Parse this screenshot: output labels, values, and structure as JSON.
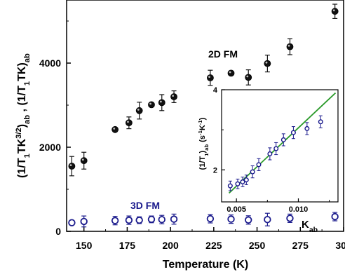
{
  "chart_data": [
    {
      "type": "scatter",
      "title": "",
      "xlabel": "Temperature (K)",
      "ylabel_html": [
        "(1/T",
        "1",
        "TK",
        "3/2",
        ")",
        "ab",
        " , (1/T",
        "1",
        "TK)",
        "ab"
      ],
      "xlim": [
        140,
        300
      ],
      "ylim": [
        0,
        5500
      ],
      "x_ticks": [
        150,
        175,
        200,
        225,
        250,
        275,
        300
      ],
      "x_tick_labels": [
        "150",
        "175",
        "200",
        "225",
        "250",
        "275",
        "300"
      ],
      "y_ticks": [
        0,
        2000,
        4000
      ],
      "y_tick_labels": [
        "0",
        "2000",
        "4000"
      ],
      "grid": false,
      "annotations": [
        {
          "text": "2D FM",
          "color": "#000000"
        },
        {
          "text": "3D FM",
          "color": "#1a1a8c"
        }
      ],
      "series": [
        {
          "marker": "filled-circle",
          "color": "#111111",
          "points": [
            {
              "x": 143,
              "y": 1550,
              "err": 230
            },
            {
              "x": 150,
              "y": 1680,
              "err": 200
            },
            {
              "x": 168,
              "y": 2420,
              "err": 0
            },
            {
              "x": 176,
              "y": 2580,
              "err": 140
            },
            {
              "x": 182,
              "y": 2870,
              "err": 200
            },
            {
              "x": 189,
              "y": 3010,
              "err": 0
            },
            {
              "x": 195,
              "y": 3060,
              "err": 190
            },
            {
              "x": 202,
              "y": 3200,
              "err": 140
            },
            {
              "x": 223,
              "y": 3650,
              "err": 180
            },
            {
              "x": 235,
              "y": 3760,
              "err": 0
            },
            {
              "x": 245,
              "y": 3660,
              "err": 180
            },
            {
              "x": 256,
              "y": 3990,
              "err": 200
            },
            {
              "x": 269,
              "y": 4390,
              "err": 190
            },
            {
              "x": 295,
              "y": 5230,
              "err": 170
            }
          ]
        },
        {
          "marker": "open-circle",
          "color": "#1a1a8c",
          "points": [
            {
              "x": 143,
              "y": 205,
              "err": 0
            },
            {
              "x": 150,
              "y": 235,
              "err": 130
            },
            {
              "x": 168,
              "y": 255,
              "err": 100
            },
            {
              "x": 176,
              "y": 265,
              "err": 100
            },
            {
              "x": 182,
              "y": 265,
              "err": 80
            },
            {
              "x": 189,
              "y": 285,
              "err": 80
            },
            {
              "x": 195,
              "y": 280,
              "err": 100
            },
            {
              "x": 202,
              "y": 290,
              "err": 120
            },
            {
              "x": 223,
              "y": 300,
              "err": 100
            },
            {
              "x": 235,
              "y": 290,
              "err": 100
            },
            {
              "x": 245,
              "y": 270,
              "err": 100
            },
            {
              "x": 256,
              "y": 280,
              "err": 150
            },
            {
              "x": 269,
              "y": 310,
              "err": 100
            },
            {
              "x": 295,
              "y": 350,
              "err": 100
            }
          ]
        }
      ]
    },
    {
      "type": "scatter",
      "title": "",
      "xlabel": "K",
      "xlabel_sub": "ab",
      "ylabel_parts": [
        "(1/T",
        "1",
        ")",
        "ab",
        " (s",
        "-1",
        "K",
        "-1",
        ")"
      ],
      "xlim": [
        0.0038,
        0.0132
      ],
      "ylim": [
        1.2,
        4
      ],
      "x_ticks": [
        0.005,
        0.01
      ],
      "x_tick_labels": [
        "0.005",
        "0.010"
      ],
      "y_ticks": [
        2,
        4
      ],
      "y_tick_labels": [
        "2",
        "4"
      ],
      "grid": false,
      "series": [
        {
          "marker": "open-circle",
          "color": "#1a1a8c",
          "points": [
            {
              "x": 0.0045,
              "y": 1.6,
              "err": 0.12
            },
            {
              "x": 0.0051,
              "y": 1.65,
              "err": 0.12
            },
            {
              "x": 0.0055,
              "y": 1.7,
              "err": 0.12
            },
            {
              "x": 0.0058,
              "y": 1.75,
              "err": 0.12
            },
            {
              "x": 0.0063,
              "y": 1.95,
              "err": 0.15
            },
            {
              "x": 0.0068,
              "y": 2.13,
              "err": 0.15
            },
            {
              "x": 0.0077,
              "y": 2.4,
              "err": 0.15
            },
            {
              "x": 0.0082,
              "y": 2.53,
              "err": 0.15
            },
            {
              "x": 0.0088,
              "y": 2.75,
              "err": 0.15
            },
            {
              "x": 0.0096,
              "y": 2.93,
              "err": 0.15
            },
            {
              "x": 0.0107,
              "y": 3.03,
              "err": 0.15
            },
            {
              "x": 0.0118,
              "y": 3.2,
              "err": 0.15
            }
          ]
        },
        {
          "type": "line",
          "color": "#2a9a2a",
          "x": [
            0.0044,
            0.013
          ],
          "y": [
            1.42,
            3.92
          ]
        }
      ]
    }
  ]
}
